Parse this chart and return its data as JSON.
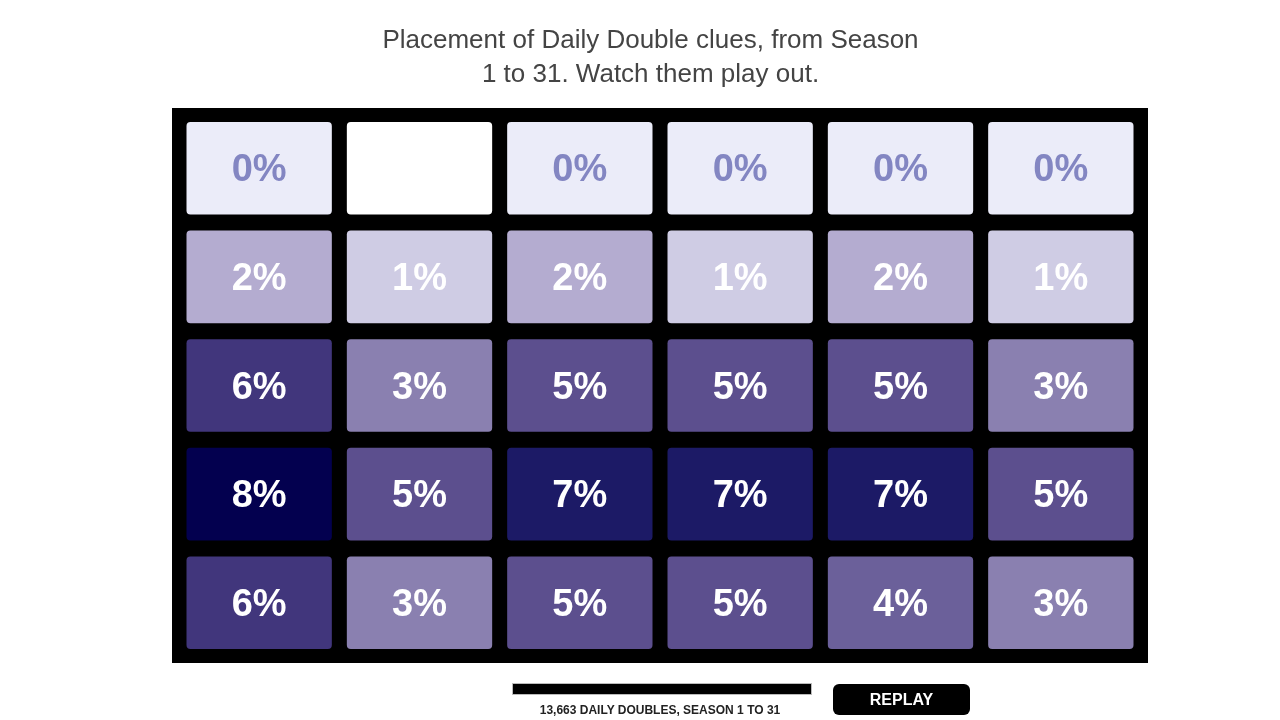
{
  "chart_data": {
    "type": "heatmap",
    "title": "Placement of Daily Double clues, from Season 1 to 31. Watch them play out.",
    "categories": [
      null,
      null,
      null,
      null,
      null,
      null
    ],
    "y_categories": [
      null,
      null,
      null,
      null,
      null
    ],
    "cells": [
      [
        0,
        null,
        0,
        0,
        0,
        0
      ],
      [
        2,
        1,
        2,
        1,
        2,
        1
      ],
      [
        6,
        3,
        5,
        5,
        5,
        3
      ],
      [
        8,
        5,
        7,
        7,
        7,
        5
      ],
      [
        6,
        3,
        5,
        5,
        4,
        3
      ]
    ],
    "cell_labels": [
      [
        "0%",
        null,
        "0%",
        "0%",
        "0%",
        "0%"
      ],
      [
        "2%",
        "1%",
        "2%",
        "1%",
        "2%",
        "1%"
      ],
      [
        "6%",
        "3%",
        "5%",
        "5%",
        "5%",
        "3%"
      ],
      [
        "8%",
        "5%",
        "7%",
        "7%",
        "7%",
        "5%"
      ],
      [
        "6%",
        "3%",
        "5%",
        "5%",
        "4%",
        "3%"
      ]
    ],
    "annotations": [
      "13,663 DAILY DOUBLES, SEASON 1 TO 31",
      "REPLAY"
    ]
  }
}
